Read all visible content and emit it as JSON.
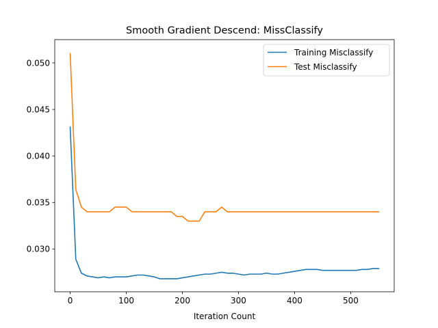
{
  "chart_data": {
    "type": "line",
    "title": "Smooth Gradient Descend: MissClassify",
    "xlabel": "Iteration Count",
    "ylabel": "",
    "xlim": [
      -27.5,
      577.5
    ],
    "ylim": [
      0.0254,
      0.0525
    ],
    "xticks": [
      0,
      100,
      200,
      300,
      400,
      500
    ],
    "yticks": [
      0.03,
      0.035,
      0.04,
      0.045,
      0.05
    ],
    "ytick_labels": [
      "0.030",
      "0.035",
      "0.040",
      "0.045",
      "0.050"
    ],
    "grid": false,
    "legend_position": "top-right",
    "x": [
      0,
      10,
      20,
      30,
      40,
      50,
      60,
      70,
      80,
      90,
      100,
      110,
      120,
      130,
      140,
      150,
      160,
      170,
      180,
      190,
      200,
      210,
      220,
      230,
      240,
      250,
      260,
      270,
      280,
      290,
      300,
      310,
      320,
      330,
      340,
      350,
      360,
      370,
      380,
      390,
      400,
      410,
      420,
      430,
      440,
      450,
      460,
      470,
      480,
      490,
      500,
      510,
      520,
      530,
      540,
      550
    ],
    "series": [
      {
        "name": "Training Misclassify",
        "color": "#1f77b4",
        "values": [
          0.0431,
          0.0289,
          0.0274,
          0.0271,
          0.027,
          0.0269,
          0.027,
          0.0269,
          0.027,
          0.027,
          0.027,
          0.0271,
          0.0272,
          0.0272,
          0.0271,
          0.027,
          0.0268,
          0.0268,
          0.0268,
          0.0268,
          0.0269,
          0.027,
          0.0271,
          0.0272,
          0.0273,
          0.0273,
          0.0274,
          0.0275,
          0.0274,
          0.0274,
          0.0273,
          0.0272,
          0.0273,
          0.0273,
          0.0273,
          0.0274,
          0.0273,
          0.0273,
          0.0274,
          0.0275,
          0.0276,
          0.0277,
          0.0278,
          0.0278,
          0.0278,
          0.0277,
          0.0277,
          0.0277,
          0.0277,
          0.0277,
          0.0277,
          0.0277,
          0.0278,
          0.0278,
          0.0279,
          0.0279
        ]
      },
      {
        "name": "Test Misclassify",
        "color": "#ff7f0e",
        "values": [
          0.051,
          0.0364,
          0.0345,
          0.034,
          0.034,
          0.034,
          0.034,
          0.034,
          0.0345,
          0.0345,
          0.0345,
          0.034,
          0.034,
          0.034,
          0.034,
          0.034,
          0.034,
          0.034,
          0.034,
          0.0335,
          0.0335,
          0.033,
          0.033,
          0.033,
          0.034,
          0.034,
          0.034,
          0.0345,
          0.034,
          0.034,
          0.034,
          0.034,
          0.034,
          0.034,
          0.034,
          0.034,
          0.034,
          0.034,
          0.034,
          0.034,
          0.034,
          0.034,
          0.034,
          0.034,
          0.034,
          0.034,
          0.034,
          0.034,
          0.034,
          0.034,
          0.034,
          0.034,
          0.034,
          0.034,
          0.034,
          0.034
        ]
      }
    ]
  }
}
